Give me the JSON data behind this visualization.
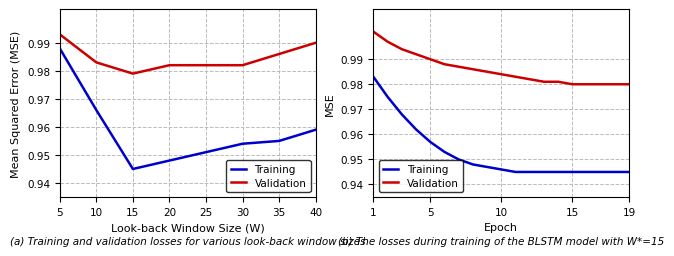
{
  "left_plot": {
    "x": [
      5,
      10,
      15,
      20,
      25,
      30,
      35,
      40
    ],
    "train": [
      0.988,
      0.966,
      0.945,
      0.948,
      0.951,
      0.954,
      0.955,
      0.959
    ],
    "val": [
      0.993,
      0.983,
      0.979,
      0.982,
      0.982,
      0.982,
      0.986,
      0.99
    ],
    "xlabel": "Look-back Window Size (W)",
    "ylabel": "Mean Squared Error (MSE)",
    "xticks": [
      5,
      10,
      15,
      20,
      25,
      30,
      35,
      40
    ],
    "ylim": [
      0.935,
      1.002
    ],
    "yticks": [
      0.94,
      0.95,
      0.96,
      0.97,
      0.98,
      0.99
    ],
    "caption": "(a) Training and validation losses for various look-back window sizes"
  },
  "right_plot": {
    "x": [
      1,
      2,
      3,
      4,
      5,
      6,
      7,
      8,
      9,
      10,
      11,
      12,
      13,
      14,
      15,
      16,
      17,
      18,
      19
    ],
    "train": [
      0.983,
      0.975,
      0.968,
      0.962,
      0.957,
      0.953,
      0.95,
      0.948,
      0.947,
      0.946,
      0.945,
      0.945,
      0.945,
      0.945,
      0.945,
      0.945,
      0.945,
      0.945,
      0.945
    ],
    "val": [
      1.001,
      0.997,
      0.994,
      0.992,
      0.99,
      0.988,
      0.987,
      0.986,
      0.985,
      0.984,
      0.983,
      0.982,
      0.981,
      0.981,
      0.98,
      0.98,
      0.98,
      0.98,
      0.98
    ],
    "xlabel": "Epoch",
    "ylabel": "MSE",
    "xticks": [
      1,
      5,
      10,
      15,
      19
    ],
    "ylim": [
      0.935,
      1.01
    ],
    "yticks": [
      0.94,
      0.95,
      0.96,
      0.97,
      0.98,
      0.99
    ],
    "caption": "(b) The losses during training of the BLSTM model with W*=15"
  },
  "train_color": "#0000cc",
  "val_color": "#cc0000",
  "linewidth": 1.8,
  "legend_labels": [
    "Training",
    "Validation"
  ],
  "grid_color": "#bbbbbb",
  "grid_style": "--",
  "caption_fontsize": 7.5,
  "axis_fontsize": 8,
  "tick_fontsize": 7.5
}
